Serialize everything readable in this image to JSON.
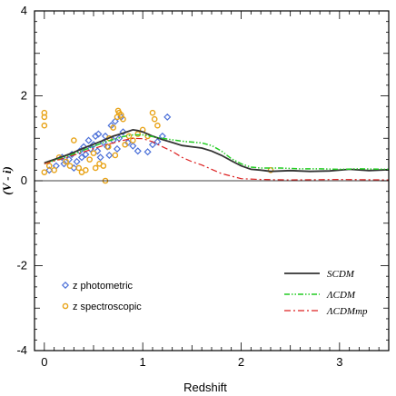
{
  "chart_data": {
    "type": "line",
    "xlabel": "Redshift",
    "ylabel": "(V - i)",
    "xlim": [
      -0.1,
      3.5
    ],
    "ylim": [
      -4,
      4
    ],
    "x_ticks": [
      "0",
      "1",
      "2",
      "3"
    ],
    "y_ticks": [
      "4",
      "2",
      "0",
      "-2",
      "-4"
    ],
    "lines": [
      {
        "name": "SCDM",
        "color": "#333333",
        "style": "solid",
        "points": [
          [
            0.0,
            0.42
          ],
          [
            0.1,
            0.5
          ],
          [
            0.2,
            0.58
          ],
          [
            0.3,
            0.67
          ],
          [
            0.4,
            0.77
          ],
          [
            0.5,
            0.86
          ],
          [
            0.6,
            0.95
          ],
          [
            0.7,
            1.05
          ],
          [
            0.8,
            1.12
          ],
          [
            0.9,
            1.2
          ],
          [
            0.95,
            1.18
          ],
          [
            1.0,
            1.15
          ],
          [
            1.1,
            1.05
          ],
          [
            1.2,
            0.97
          ],
          [
            1.3,
            0.9
          ],
          [
            1.4,
            0.83
          ],
          [
            1.5,
            0.8
          ],
          [
            1.6,
            0.77
          ],
          [
            1.7,
            0.7
          ],
          [
            1.8,
            0.6
          ],
          [
            1.9,
            0.47
          ],
          [
            2.0,
            0.35
          ],
          [
            2.1,
            0.27
          ],
          [
            2.2,
            0.25
          ],
          [
            2.3,
            0.22
          ],
          [
            2.5,
            0.24
          ],
          [
            2.7,
            0.22
          ],
          [
            2.9,
            0.23
          ],
          [
            3.1,
            0.27
          ],
          [
            3.3,
            0.24
          ],
          [
            3.5,
            0.26
          ]
        ]
      },
      {
        "name": "ΛCDM",
        "color": "#22cc22",
        "style": "dash-dot-dot",
        "points": [
          [
            0.0,
            0.4
          ],
          [
            0.2,
            0.55
          ],
          [
            0.4,
            0.72
          ],
          [
            0.6,
            0.9
          ],
          [
            0.8,
            1.04
          ],
          [
            0.9,
            1.08
          ],
          [
            1.0,
            1.08
          ],
          [
            1.2,
            1.0
          ],
          [
            1.4,
            0.93
          ],
          [
            1.6,
            0.89
          ],
          [
            1.7,
            0.83
          ],
          [
            1.8,
            0.7
          ],
          [
            1.9,
            0.52
          ],
          [
            2.0,
            0.4
          ],
          [
            2.1,
            0.32
          ],
          [
            2.2,
            0.3
          ],
          [
            2.4,
            0.3
          ],
          [
            2.6,
            0.28
          ],
          [
            2.8,
            0.28
          ],
          [
            3.0,
            0.27
          ],
          [
            3.2,
            0.28
          ],
          [
            3.5,
            0.27
          ]
        ]
      },
      {
        "name": "ΛCDMmp",
        "color": "#dd2222",
        "style": "dash-dot",
        "points": [
          [
            0.0,
            0.4
          ],
          [
            0.2,
            0.53
          ],
          [
            0.4,
            0.68
          ],
          [
            0.6,
            0.83
          ],
          [
            0.8,
            0.95
          ],
          [
            0.9,
            1.0
          ],
          [
            1.0,
            0.99
          ],
          [
            1.1,
            0.92
          ],
          [
            1.2,
            0.8
          ],
          [
            1.3,
            0.69
          ],
          [
            1.4,
            0.55
          ],
          [
            1.5,
            0.45
          ],
          [
            1.6,
            0.37
          ],
          [
            1.7,
            0.27
          ],
          [
            1.8,
            0.17
          ],
          [
            1.9,
            0.11
          ],
          [
            2.0,
            0.05
          ],
          [
            2.2,
            0.03
          ],
          [
            2.5,
            0.02
          ],
          [
            3.0,
            0.03
          ],
          [
            3.5,
            0.02
          ]
        ]
      }
    ],
    "scatter": [
      {
        "name": "z photometric",
        "color": "#4a6fd8",
        "marker": "diamond",
        "points": [
          [
            0.05,
            0.25
          ],
          [
            0.12,
            0.35
          ],
          [
            0.18,
            0.55
          ],
          [
            0.2,
            0.4
          ],
          [
            0.25,
            0.5
          ],
          [
            0.28,
            0.62
          ],
          [
            0.3,
            0.3
          ],
          [
            0.33,
            0.45
          ],
          [
            0.36,
            0.7
          ],
          [
            0.38,
            0.55
          ],
          [
            0.4,
            0.8
          ],
          [
            0.42,
            0.62
          ],
          [
            0.45,
            0.95
          ],
          [
            0.47,
            0.75
          ],
          [
            0.5,
            0.85
          ],
          [
            0.52,
            1.05
          ],
          [
            0.54,
            0.7
          ],
          [
            0.55,
            1.1
          ],
          [
            0.57,
            0.55
          ],
          [
            0.6,
            0.9
          ],
          [
            0.62,
            1.05
          ],
          [
            0.64,
            0.8
          ],
          [
            0.66,
            0.6
          ],
          [
            0.68,
            1.3
          ],
          [
            0.7,
            0.95
          ],
          [
            0.72,
            1.4
          ],
          [
            0.74,
            0.75
          ],
          [
            0.76,
            1.0
          ],
          [
            0.78,
            1.5
          ],
          [
            0.8,
            1.15
          ],
          [
            0.85,
            0.9
          ],
          [
            0.9,
            0.82
          ],
          [
            0.95,
            0.7
          ],
          [
            1.05,
            0.68
          ],
          [
            1.1,
            0.85
          ],
          [
            1.15,
            0.92
          ],
          [
            1.2,
            1.05
          ],
          [
            1.25,
            1.5
          ]
        ]
      },
      {
        "name": "z spectroscopic",
        "color": "#e8a317",
        "marker": "circle",
        "points": [
          [
            0.0,
            1.3
          ],
          [
            0.0,
            1.5
          ],
          [
            0.0,
            1.6
          ],
          [
            0.0,
            0.2
          ],
          [
            0.05,
            0.35
          ],
          [
            0.1,
            0.25
          ],
          [
            0.15,
            0.55
          ],
          [
            0.22,
            0.45
          ],
          [
            0.26,
            0.35
          ],
          [
            0.3,
            0.95
          ],
          [
            0.35,
            0.3
          ],
          [
            0.38,
            0.2
          ],
          [
            0.42,
            0.25
          ],
          [
            0.46,
            0.5
          ],
          [
            0.5,
            0.65
          ],
          [
            0.52,
            0.3
          ],
          [
            0.56,
            0.4
          ],
          [
            0.6,
            0.35
          ],
          [
            0.62,
            0.0
          ],
          [
            0.65,
            0.8
          ],
          [
            0.66,
            1.0
          ],
          [
            0.7,
            1.25
          ],
          [
            0.72,
            0.6
          ],
          [
            0.74,
            1.5
          ],
          [
            0.75,
            1.65
          ],
          [
            0.76,
            1.6
          ],
          [
            0.78,
            1.55
          ],
          [
            0.8,
            1.45
          ],
          [
            0.82,
            0.85
          ],
          [
            0.86,
            1.05
          ],
          [
            0.9,
            0.95
          ],
          [
            0.95,
            1.1
          ],
          [
            1.0,
            1.2
          ],
          [
            1.05,
            1.05
          ],
          [
            1.1,
            1.6
          ],
          [
            1.12,
            1.45
          ],
          [
            1.15,
            1.3
          ],
          [
            2.3,
            0.25
          ]
        ]
      }
    ],
    "legend_left": {
      "placement": "bottom-left",
      "entries": [
        "z photometric",
        "z spectroscopic"
      ]
    },
    "legend_right": {
      "placement": "bottom-right",
      "entries": [
        "SCDM",
        "ΛCDM",
        "ΛCDMmp"
      ]
    }
  }
}
